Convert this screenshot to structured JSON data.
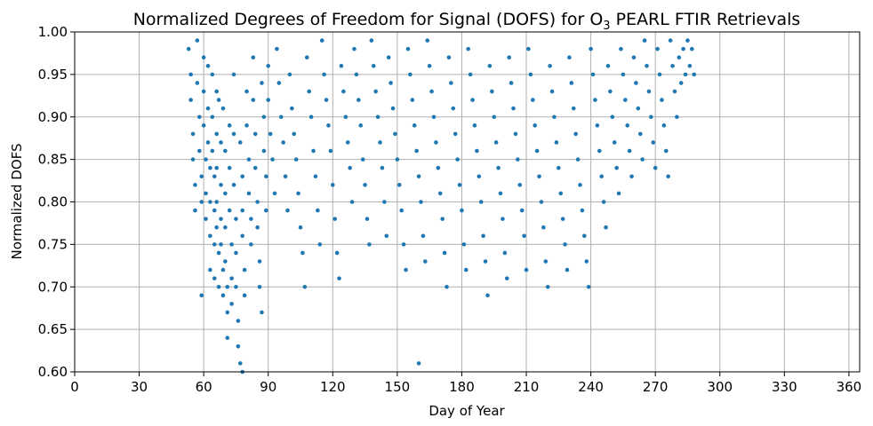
{
  "chart_data": {
    "type": "scatter",
    "title_main": "Normalized Degrees of Freedom for Signal (DOFS) for O",
    "title_sub": "3",
    "title_end": " PEARL FTIR Retrievals",
    "xlabel": "Day of Year",
    "ylabel": "Normalized DOFS",
    "xlim": [
      0,
      365
    ],
    "ylim": [
      0.6,
      1.0
    ],
    "xticks": [
      0,
      30,
      60,
      90,
      120,
      150,
      180,
      210,
      240,
      270,
      300,
      330,
      360
    ],
    "xtick_labels": [
      "0",
      "30",
      "60",
      "90",
      "120",
      "150",
      "180",
      "210",
      "240",
      "270",
      "300",
      "330",
      "360"
    ],
    "yticks": [
      0.6,
      0.65,
      0.7,
      0.75,
      0.8,
      0.85,
      0.9,
      0.95,
      1.0
    ],
    "ytick_labels": [
      "0.60",
      "0.65",
      "0.70",
      "0.75",
      "0.80",
      "0.85",
      "0.90",
      "0.95",
      "1.00"
    ],
    "grid": true,
    "marker_color": "#1f77b4",
    "series": [
      {
        "values": [
          [
            53,
            0.98
          ],
          [
            54,
            0.95
          ],
          [
            54,
            0.92
          ],
          [
            55,
            0.88
          ],
          [
            55,
            0.85
          ],
          [
            56,
            0.82
          ],
          [
            56,
            0.79
          ],
          [
            57,
            0.99
          ],
          [
            57,
            0.94
          ],
          [
            58,
            0.9
          ],
          [
            58,
            0.86
          ],
          [
            59,
            0.83
          ],
          [
            59,
            0.8
          ],
          [
            59,
            0.69
          ],
          [
            60,
            0.97
          ],
          [
            60,
            0.93
          ],
          [
            60,
            0.89
          ],
          [
            61,
            0.85
          ],
          [
            61,
            0.81
          ],
          [
            61,
            0.78
          ],
          [
            62,
            0.96
          ],
          [
            62,
            0.91
          ],
          [
            62,
            0.87
          ],
          [
            63,
            0.84
          ],
          [
            63,
            0.8
          ],
          [
            63,
            0.76
          ],
          [
            63,
            0.72
          ],
          [
            64,
            0.95
          ],
          [
            64,
            0.9
          ],
          [
            64,
            0.86
          ],
          [
            65,
            0.83
          ],
          [
            65,
            0.79
          ],
          [
            65,
            0.75
          ],
          [
            65,
            0.71
          ],
          [
            66,
            0.93
          ],
          [
            66,
            0.88
          ],
          [
            66,
            0.84
          ],
          [
            66,
            0.8
          ],
          [
            66,
            0.77
          ],
          [
            67,
            0.74
          ],
          [
            67,
            0.7
          ],
          [
            67,
            0.92
          ],
          [
            68,
            0.87
          ],
          [
            68,
            0.82
          ],
          [
            68,
            0.78
          ],
          [
            68,
            0.75
          ],
          [
            69,
            0.72
          ],
          [
            69,
            0.69
          ],
          [
            69,
            0.91
          ],
          [
            70,
            0.86
          ],
          [
            70,
            0.81
          ],
          [
            70,
            0.77
          ],
          [
            70,
            0.73
          ],
          [
            71,
            0.7
          ],
          [
            71,
            0.67
          ],
          [
            71,
            0.64
          ],
          [
            72,
            0.89
          ],
          [
            72,
            0.84
          ],
          [
            72,
            0.79
          ],
          [
            73,
            0.75
          ],
          [
            73,
            0.71
          ],
          [
            73,
            0.68
          ],
          [
            74,
            0.95
          ],
          [
            74,
            0.88
          ],
          [
            74,
            0.82
          ],
          [
            75,
            0.78
          ],
          [
            75,
            0.74
          ],
          [
            75,
            0.7
          ],
          [
            76,
            0.66
          ],
          [
            76,
            0.63
          ],
          [
            77,
            0.61
          ],
          [
            77,
            0.87
          ],
          [
            78,
            0.83
          ],
          [
            78,
            0.79
          ],
          [
            78,
            0.76
          ],
          [
            79,
            0.72
          ],
          [
            79,
            0.69
          ],
          [
            80,
            0.93
          ],
          [
            80,
            0.89
          ],
          [
            81,
            0.85
          ],
          [
            81,
            0.81
          ],
          [
            82,
            0.78
          ],
          [
            82,
            0.75
          ],
          [
            83,
            0.97
          ],
          [
            83,
            0.92
          ],
          [
            84,
            0.88
          ],
          [
            84,
            0.84
          ],
          [
            85,
            0.8
          ],
          [
            85,
            0.77
          ],
          [
            86,
            0.73
          ],
          [
            86,
            0.7
          ],
          [
            87,
            0.67
          ],
          [
            87,
            0.94
          ],
          [
            88,
            0.9
          ],
          [
            88,
            0.86
          ],
          [
            89,
            0.83
          ],
          [
            89,
            0.79
          ],
          [
            90,
            0.96
          ],
          [
            90,
            0.92
          ],
          [
            91,
            0.88
          ],
          [
            92,
            0.85
          ],
          [
            93,
            0.81
          ],
          [
            94,
            0.98
          ],
          [
            95,
            0.94
          ],
          [
            96,
            0.9
          ],
          [
            97,
            0.87
          ],
          [
            98,
            0.83
          ],
          [
            99,
            0.79
          ],
          [
            100,
            0.95
          ],
          [
            101,
            0.91
          ],
          [
            102,
            0.88
          ],
          [
            103,
            0.85
          ],
          [
            104,
            0.81
          ],
          [
            105,
            0.77
          ],
          [
            106,
            0.74
          ],
          [
            107,
            0.7
          ],
          [
            108,
            0.97
          ],
          [
            109,
            0.93
          ],
          [
            110,
            0.9
          ],
          [
            111,
            0.86
          ],
          [
            112,
            0.83
          ],
          [
            113,
            0.79
          ],
          [
            114,
            0.75
          ],
          [
            115,
            0.99
          ],
          [
            116,
            0.95
          ],
          [
            117,
            0.92
          ],
          [
            118,
            0.89
          ],
          [
            119,
            0.86
          ],
          [
            120,
            0.82
          ],
          [
            121,
            0.78
          ],
          [
            122,
            0.74
          ],
          [
            123,
            0.71
          ],
          [
            124,
            0.96
          ],
          [
            125,
            0.93
          ],
          [
            126,
            0.9
          ],
          [
            127,
            0.87
          ],
          [
            128,
            0.84
          ],
          [
            129,
            0.8
          ],
          [
            130,
            0.98
          ],
          [
            131,
            0.95
          ],
          [
            132,
            0.92
          ],
          [
            133,
            0.89
          ],
          [
            134,
            0.85
          ],
          [
            135,
            0.82
          ],
          [
            136,
            0.78
          ],
          [
            137,
            0.75
          ],
          [
            138,
            0.99
          ],
          [
            139,
            0.96
          ],
          [
            140,
            0.93
          ],
          [
            141,
            0.9
          ],
          [
            142,
            0.87
          ],
          [
            143,
            0.84
          ],
          [
            144,
            0.8
          ],
          [
            145,
            0.76
          ],
          [
            146,
            0.97
          ],
          [
            147,
            0.94
          ],
          [
            148,
            0.91
          ],
          [
            149,
            0.88
          ],
          [
            150,
            0.85
          ],
          [
            151,
            0.82
          ],
          [
            152,
            0.79
          ],
          [
            153,
            0.75
          ],
          [
            154,
            0.72
          ],
          [
            155,
            0.98
          ],
          [
            156,
            0.95
          ],
          [
            157,
            0.92
          ],
          [
            158,
            0.89
          ],
          [
            159,
            0.86
          ],
          [
            160,
            0.83
          ],
          [
            161,
            0.8
          ],
          [
            162,
            0.76
          ],
          [
            163,
            0.73
          ],
          [
            164,
            0.99
          ],
          [
            165,
            0.96
          ],
          [
            166,
            0.93
          ],
          [
            167,
            0.9
          ],
          [
            168,
            0.87
          ],
          [
            169,
            0.84
          ],
          [
            170,
            0.81
          ],
          [
            171,
            0.78
          ],
          [
            172,
            0.74
          ],
          [
            173,
            0.7
          ],
          [
            174,
            0.97
          ],
          [
            175,
            0.94
          ],
          [
            176,
            0.91
          ],
          [
            177,
            0.88
          ],
          [
            178,
            0.85
          ],
          [
            179,
            0.82
          ],
          [
            180,
            0.79
          ],
          [
            181,
            0.75
          ],
          [
            182,
            0.72
          ],
          [
            183,
            0.98
          ],
          [
            184,
            0.95
          ],
          [
            185,
            0.92
          ],
          [
            186,
            0.89
          ],
          [
            187,
            0.86
          ],
          [
            188,
            0.83
          ],
          [
            189,
            0.8
          ],
          [
            190,
            0.76
          ],
          [
            191,
            0.73
          ],
          [
            192,
            0.69
          ],
          [
            193,
            0.96
          ],
          [
            194,
            0.93
          ],
          [
            195,
            0.9
          ],
          [
            196,
            0.87
          ],
          [
            197,
            0.84
          ],
          [
            198,
            0.81
          ],
          [
            199,
            0.78
          ],
          [
            200,
            0.74
          ],
          [
            201,
            0.71
          ],
          [
            202,
            0.97
          ],
          [
            203,
            0.94
          ],
          [
            204,
            0.91
          ],
          [
            205,
            0.88
          ],
          [
            206,
            0.85
          ],
          [
            207,
            0.82
          ],
          [
            208,
            0.79
          ],
          [
            209,
            0.76
          ],
          [
            210,
            0.72
          ],
          [
            211,
            0.98
          ],
          [
            212,
            0.95
          ],
          [
            213,
            0.92
          ],
          [
            214,
            0.89
          ],
          [
            215,
            0.86
          ],
          [
            216,
            0.83
          ],
          [
            217,
            0.8
          ],
          [
            218,
            0.77
          ],
          [
            219,
            0.73
          ],
          [
            220,
            0.7
          ],
          [
            221,
            0.96
          ],
          [
            222,
            0.93
          ],
          [
            223,
            0.9
          ],
          [
            224,
            0.87
          ],
          [
            225,
            0.84
          ],
          [
            226,
            0.81
          ],
          [
            227,
            0.78
          ],
          [
            228,
            0.75
          ],
          [
            229,
            0.72
          ],
          [
            230,
            0.97
          ],
          [
            231,
            0.94
          ],
          [
            232,
            0.91
          ],
          [
            233,
            0.88
          ],
          [
            234,
            0.85
          ],
          [
            235,
            0.82
          ],
          [
            236,
            0.79
          ],
          [
            237,
            0.76
          ],
          [
            238,
            0.73
          ],
          [
            239,
            0.7
          ],
          [
            240,
            0.98
          ],
          [
            241,
            0.95
          ],
          [
            242,
            0.92
          ],
          [
            243,
            0.89
          ],
          [
            244,
            0.86
          ],
          [
            245,
            0.83
          ],
          [
            246,
            0.8
          ],
          [
            247,
            0.77
          ],
          [
            248,
            0.96
          ],
          [
            249,
            0.93
          ],
          [
            250,
            0.9
          ],
          [
            251,
            0.87
          ],
          [
            252,
            0.84
          ],
          [
            253,
            0.81
          ],
          [
            254,
            0.98
          ],
          [
            255,
            0.95
          ],
          [
            256,
            0.92
          ],
          [
            257,
            0.89
          ],
          [
            258,
            0.86
          ],
          [
            259,
            0.83
          ],
          [
            260,
            0.97
          ],
          [
            261,
            0.94
          ],
          [
            262,
            0.91
          ],
          [
            263,
            0.88
          ],
          [
            264,
            0.85
          ],
          [
            265,
            0.99
          ],
          [
            266,
            0.96
          ],
          [
            267,
            0.93
          ],
          [
            268,
            0.9
          ],
          [
            269,
            0.87
          ],
          [
            270,
            0.84
          ],
          [
            271,
            0.98
          ],
          [
            272,
            0.95
          ],
          [
            273,
            0.92
          ],
          [
            274,
            0.89
          ],
          [
            275,
            0.86
          ],
          [
            276,
            0.83
          ],
          [
            277,
            0.99
          ],
          [
            278,
            0.96
          ],
          [
            279,
            0.93
          ],
          [
            280,
            0.9
          ],
          [
            281,
            0.97
          ],
          [
            282,
            0.94
          ],
          [
            283,
            0.98
          ],
          [
            284,
            0.95
          ],
          [
            285,
            0.99
          ],
          [
            286,
            0.96
          ],
          [
            287,
            0.98
          ],
          [
            288,
            0.95
          ],
          [
            78,
            0.6
          ],
          [
            160,
            0.61
          ]
        ]
      }
    ]
  }
}
